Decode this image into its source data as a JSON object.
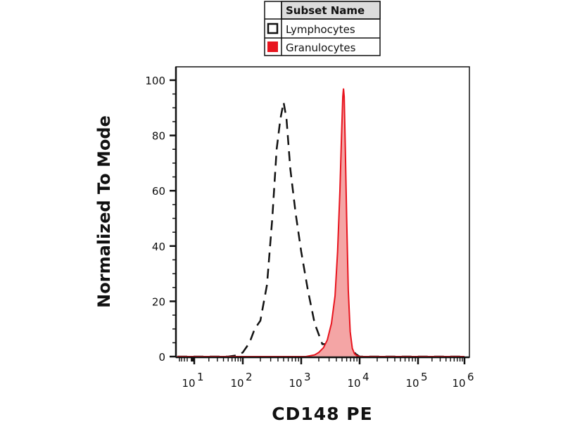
{
  "chart_data": {
    "type": "area",
    "xlabel": "CD148 PE",
    "ylabel": "Normalized To Mode",
    "x_scale": "biexponential (log)",
    "ylim": [
      0,
      100
    ],
    "y_ticks": [
      "0",
      "20",
      "40",
      "60",
      "80",
      "100"
    ],
    "x_ticks": [
      {
        "base": "10",
        "exp": "1",
        "value": 10
      },
      {
        "base": "10",
        "exp": "2",
        "value": 100
      },
      {
        "base": "10",
        "exp": "3",
        "value": 1000
      },
      {
        "base": "10",
        "exp": "4",
        "value": 10000
      },
      {
        "base": "10",
        "exp": "5",
        "value": 100000
      },
      {
        "base": "10",
        "exp": "6",
        "value": 1000000
      }
    ],
    "legend": {
      "header": "Subset Name",
      "placement": "top-center",
      "entries": [
        {
          "name": "Lymphocytes",
          "swatch": "open-square"
        },
        {
          "name": "Granulocytes",
          "swatch": "filled-red-square"
        }
      ]
    },
    "series": [
      {
        "name": "Lymphocytes",
        "style": "dashed-line",
        "color": "#111111",
        "points": [
          [
            1,
            0
          ],
          [
            50,
            0
          ],
          [
            80,
            0.5
          ],
          [
            100,
            1.5
          ],
          [
            130,
            5
          ],
          [
            160,
            10
          ],
          [
            200,
            13
          ],
          [
            260,
            26
          ],
          [
            320,
            50
          ],
          [
            380,
            75
          ],
          [
            440,
            86
          ],
          [
            500,
            92
          ],
          [
            560,
            86
          ],
          [
            650,
            68
          ],
          [
            800,
            52
          ],
          [
            1000,
            38
          ],
          [
            1300,
            24
          ],
          [
            1700,
            12
          ],
          [
            2300,
            4.5
          ],
          [
            2900,
            4.5
          ],
          [
            3500,
            6.5
          ],
          [
            4100,
            6.5
          ],
          [
            5000,
            5.5
          ],
          [
            6000,
            7
          ],
          [
            7200,
            4
          ],
          [
            8500,
            1
          ],
          [
            10000,
            0
          ],
          [
            1000000,
            0
          ]
        ]
      },
      {
        "name": "Granulocytes",
        "style": "filled-area",
        "color": "#e8141e",
        "fill": "#f4a5a5",
        "points": [
          [
            1,
            0
          ],
          [
            1200,
            0
          ],
          [
            1700,
            0.6
          ],
          [
            2000,
            1.5
          ],
          [
            2400,
            3.2
          ],
          [
            2800,
            6
          ],
          [
            3300,
            12
          ],
          [
            3800,
            22
          ],
          [
            4200,
            38
          ],
          [
            4600,
            60
          ],
          [
            4900,
            80
          ],
          [
            5150,
            94
          ],
          [
            5300,
            97
          ],
          [
            5450,
            94
          ],
          [
            5700,
            75
          ],
          [
            6000,
            50
          ],
          [
            6400,
            24
          ],
          [
            6900,
            9
          ],
          [
            7500,
            3
          ],
          [
            8200,
            1
          ],
          [
            9000,
            0.3
          ],
          [
            10000,
            0
          ],
          [
            1000000,
            0
          ]
        ]
      }
    ]
  }
}
